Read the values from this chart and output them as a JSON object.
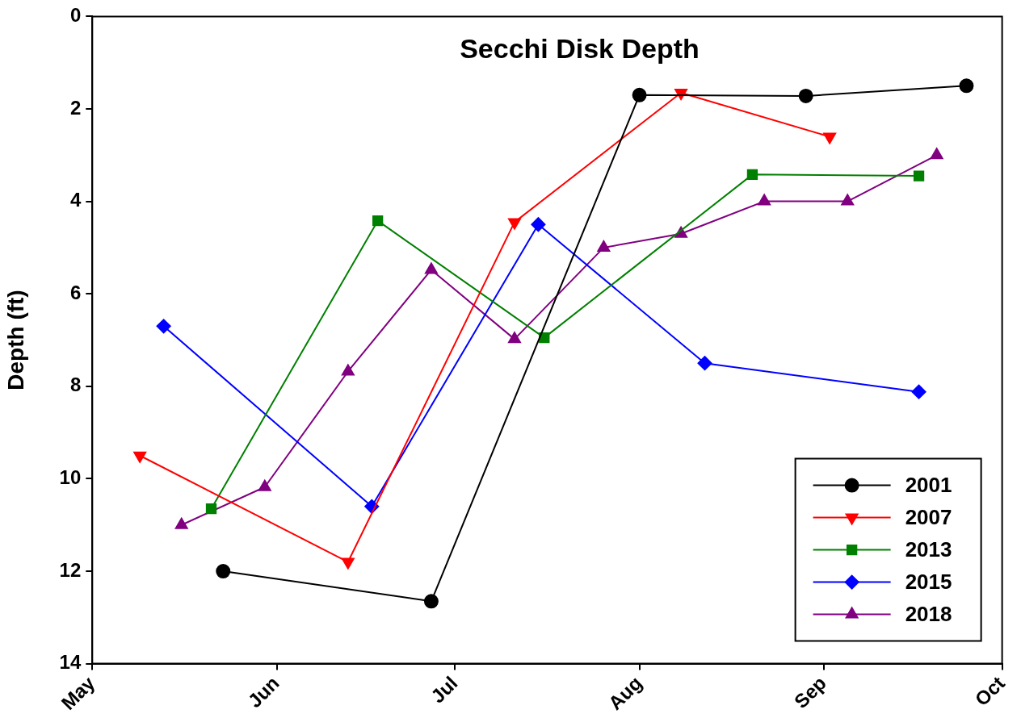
{
  "chart_data": {
    "type": "line",
    "title": "Secchi Disk Depth",
    "ylabel": "Depth (ft)",
    "xlim": [
      "--05-01",
      "--10-01"
    ],
    "xticks": [
      {
        "value": "--05-01",
        "label": "May"
      },
      {
        "value": "--06-01",
        "label": "Jun"
      },
      {
        "value": "--07-01",
        "label": "Jul"
      },
      {
        "value": "--08-01",
        "label": "Aug"
      },
      {
        "value": "--09-01",
        "label": "Sep"
      },
      {
        "value": "--10-01",
        "label": "Oct"
      }
    ],
    "ylim": [
      14,
      0
    ],
    "yticks": [
      0,
      2,
      4,
      6,
      8,
      10,
      12,
      14
    ],
    "grid": false,
    "legend": "bottom right",
    "series": [
      {
        "name": "2001",
        "color": "#000000",
        "marker": "circle",
        "x": [
          "--05-23",
          "--06-27",
          "--08-01",
          "--08-29",
          "--09-25"
        ],
        "values": [
          12.0,
          12.65,
          1.7,
          1.72,
          1.5
        ]
      },
      {
        "name": "2007",
        "color": "#ff0000",
        "marker": "triangle-down",
        "x": [
          "--05-09",
          "--06-13",
          "--07-11",
          "--08-08",
          "--09-02"
        ],
        "values": [
          9.5,
          11.8,
          4.45,
          1.65,
          2.6
        ]
      },
      {
        "name": "2013",
        "color": "#008000",
        "marker": "square",
        "x": [
          "--05-21",
          "--06-18",
          "--07-16",
          "--08-20",
          "--09-17"
        ],
        "values": [
          10.65,
          4.42,
          6.95,
          3.42,
          3.45
        ]
      },
      {
        "name": "2015",
        "color": "#0000ff",
        "marker": "diamond",
        "x": [
          "--05-13",
          "--06-17",
          "--07-15",
          "--08-12",
          "--09-17"
        ],
        "values": [
          6.7,
          10.6,
          4.5,
          7.5,
          8.12
        ]
      },
      {
        "name": "2018",
        "color": "#800080",
        "marker": "triangle",
        "x": [
          "--05-16",
          "--05-30",
          "--06-13",
          "--06-27",
          "--07-11",
          "--07-26",
          "--08-08",
          "--08-22",
          "--09-05",
          "--09-20"
        ],
        "values": [
          11.0,
          10.18,
          7.68,
          5.48,
          6.98,
          5.0,
          4.7,
          4.0,
          4.0,
          3.0
        ]
      }
    ]
  }
}
